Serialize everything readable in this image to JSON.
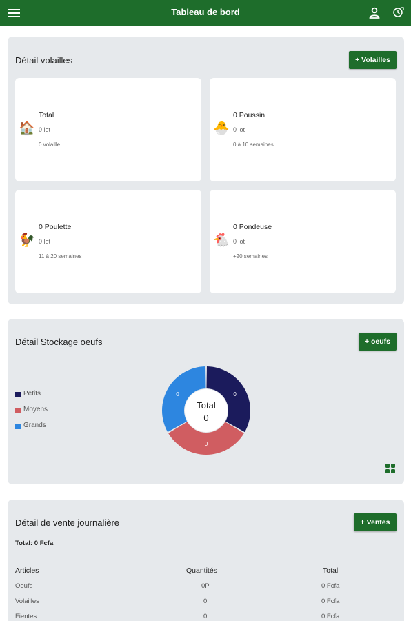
{
  "appbar": {
    "title": "Tableau de bord",
    "menu_icon": "menu-icon",
    "user_icon": "user-icon",
    "history_icon": "history-icon"
  },
  "colors": {
    "primary": "#1e6d2b",
    "petits": "#1b1b5c",
    "moyens": "#d05d61",
    "grands": "#2d86e0"
  },
  "volailles": {
    "title": "Détail volailles",
    "add_button": "+ Volailles",
    "cards": [
      {
        "icon": "henhouse-icon",
        "name": "Total",
        "lots": "0 lot",
        "detail": "0 volaille"
      },
      {
        "icon": "chick-icon",
        "name": "0 Poussin",
        "lots": "0 lot",
        "detail": "0 à 10 semaines"
      },
      {
        "icon": "pullet-icon",
        "name": "0 Poulette",
        "lots": "0 lot",
        "detail": "11 à 20 semaines"
      },
      {
        "icon": "hen-icon",
        "name": "0 Pondeuse",
        "lots": "0 lot",
        "detail": "+20 semaines"
      }
    ]
  },
  "stockage": {
    "title": "Détail Stockage oeufs",
    "add_button": "+ oeufs",
    "legend": [
      "Petits",
      "Moyens",
      "Grands"
    ],
    "center_label": "Total",
    "center_value": "0",
    "segment_values": [
      "0",
      "0",
      "0"
    ]
  },
  "chart_data": {
    "type": "pie",
    "title": "Détail Stockage oeufs",
    "categories": [
      "Petits",
      "Moyens",
      "Grands"
    ],
    "values": [
      0,
      0,
      0
    ],
    "center_text": "Total 0",
    "legend_position": "left"
  },
  "ventes": {
    "title": "Détail de vente journalière",
    "add_button": "+ Ventes",
    "total": "Total: 0 Fcfa",
    "columns": [
      "Articles",
      "Quantités",
      "Total"
    ],
    "rows": [
      [
        "Oeufs",
        "0P",
        "0 Fcfa"
      ],
      [
        "Volailles",
        "0",
        "0 Fcfa"
      ],
      [
        "Fientes",
        "0",
        "0 Fcfa"
      ]
    ]
  }
}
